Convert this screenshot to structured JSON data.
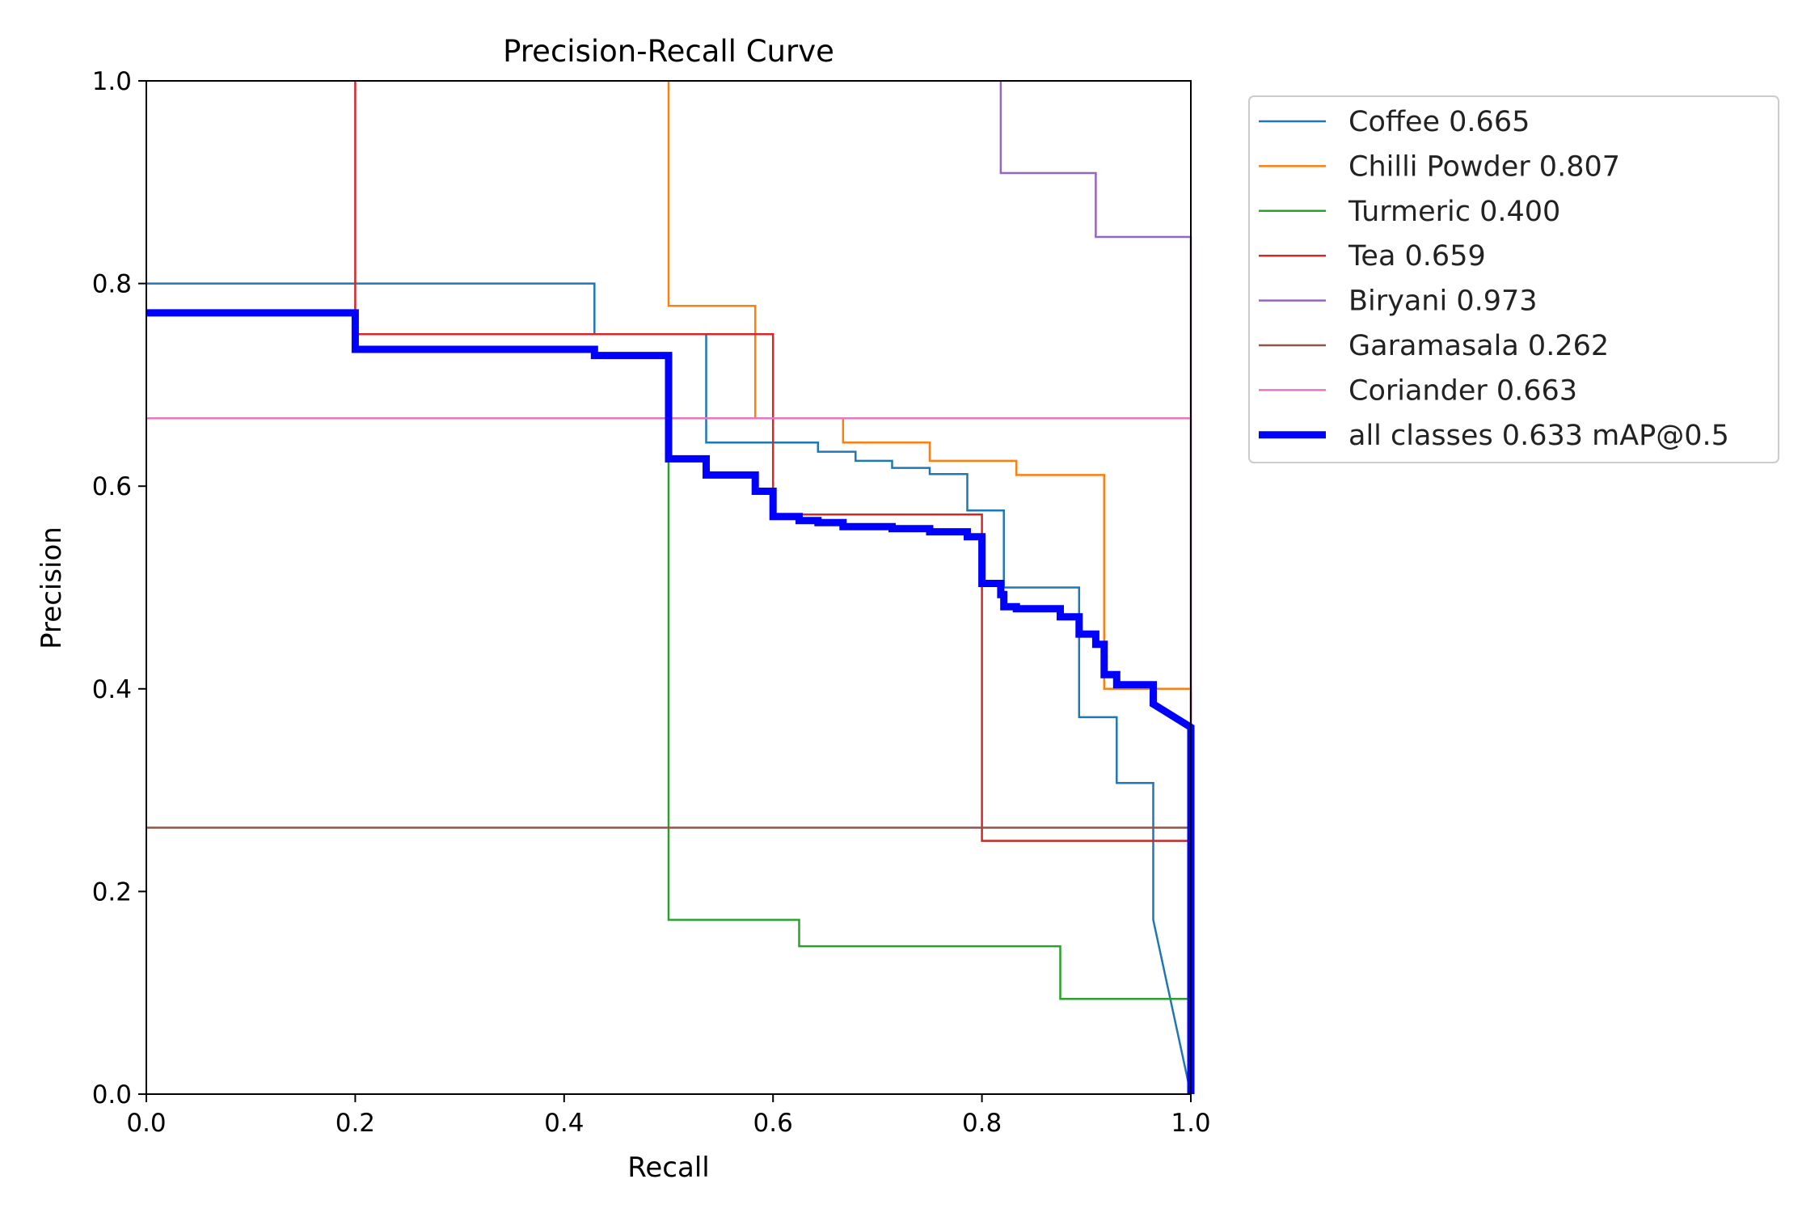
{
  "chart_data": {
    "type": "line",
    "title": "Precision-Recall Curve",
    "xlabel": "Recall",
    "ylabel": "Precision",
    "xlim": [
      0,
      1
    ],
    "ylim": [
      0,
      1
    ],
    "xticks": [
      "0.0",
      "0.2",
      "0.4",
      "0.6",
      "0.8",
      "1.0"
    ],
    "yticks": [
      "0.0",
      "0.2",
      "0.4",
      "0.6",
      "0.8",
      "1.0"
    ],
    "grid": false,
    "legend_position": "outside-top-right",
    "series": [
      {
        "name": "Coffee 0.665",
        "color": "#1f77b4",
        "x": [
          0,
          0.429,
          0.429,
          0.536,
          0.536,
          0.643,
          0.643,
          0.679,
          0.679,
          0.714,
          0.714,
          0.75,
          0.75,
          0.786,
          0.786,
          0.821,
          0.821,
          0.893,
          0.893,
          0.929,
          0.929,
          0.964,
          0.964,
          1.0
        ],
        "y": [
          0.8,
          0.8,
          0.75,
          0.75,
          0.643,
          0.643,
          0.634,
          0.634,
          0.625,
          0.625,
          0.618,
          0.618,
          0.612,
          0.612,
          0.576,
          0.576,
          0.5,
          0.5,
          0.372,
          0.372,
          0.307,
          0.307,
          0.172,
          0.0
        ]
      },
      {
        "name": "Chilli Powder 0.807",
        "color": "#ff7f0e",
        "x": [
          0.5,
          0.5,
          0.583,
          0.583,
          0.667,
          0.667,
          0.75,
          0.75,
          0.833,
          0.833,
          0.917,
          0.917,
          1.0,
          1.0
        ],
        "y": [
          1.0,
          0.778,
          0.778,
          0.667,
          0.667,
          0.643,
          0.643,
          0.625,
          0.625,
          0.611,
          0.611,
          0.4,
          0.4,
          0.0
        ]
      },
      {
        "name": "Turmeric 0.400",
        "color": "#2ca02c",
        "x": [
          0.5,
          0.5,
          0.625,
          0.625,
          0.875,
          0.875,
          1.0,
          1.0
        ],
        "y": [
          0.625,
          0.172,
          0.172,
          0.146,
          0.146,
          0.094,
          0.094,
          0.0
        ]
      },
      {
        "name": "Tea 0.659",
        "color": "#d62728",
        "x": [
          0.2,
          0.2,
          0.6,
          0.6,
          0.8,
          0.8,
          1.0,
          1.0
        ],
        "y": [
          1.0,
          0.75,
          0.75,
          0.572,
          0.572,
          0.25,
          0.25,
          0.0
        ]
      },
      {
        "name": "Biryani 0.973",
        "color": "#9467bd",
        "x": [
          0.818,
          0.818,
          0.909,
          0.909,
          1.0,
          1.0
        ],
        "y": [
          1.0,
          0.909,
          0.909,
          0.846,
          0.846,
          0.0
        ]
      },
      {
        "name": "Garamasala 0.262",
        "color": "#8c564b",
        "x": [
          0,
          1.0,
          1.0
        ],
        "y": [
          0.263,
          0.263,
          0.0
        ]
      },
      {
        "name": "Coriander 0.663",
        "color": "#e377c2",
        "x": [
          0,
          1.0,
          1.0
        ],
        "y": [
          0.667,
          0.667,
          0.0
        ]
      },
      {
        "name": "all classes 0.633 mAP@0.5",
        "color": "#0000ff",
        "thick": true,
        "x": [
          0,
          0.2,
          0.2,
          0.429,
          0.429,
          0.5,
          0.5,
          0.536,
          0.536,
          0.583,
          0.583,
          0.6,
          0.6,
          0.625,
          0.625,
          0.643,
          0.643,
          0.667,
          0.667,
          0.714,
          0.714,
          0.75,
          0.75,
          0.786,
          0.786,
          0.8,
          0.8,
          0.818,
          0.818,
          0.821,
          0.821,
          0.833,
          0.833,
          0.875,
          0.875,
          0.893,
          0.893,
          0.909,
          0.909,
          0.917,
          0.917,
          0.929,
          0.929,
          0.964,
          0.964,
          1.0,
          1.0
        ],
        "y": [
          0.771,
          0.771,
          0.735,
          0.735,
          0.729,
          0.729,
          0.627,
          0.627,
          0.611,
          0.611,
          0.595,
          0.595,
          0.57,
          0.57,
          0.566,
          0.566,
          0.564,
          0.564,
          0.56,
          0.56,
          0.558,
          0.558,
          0.555,
          0.555,
          0.55,
          0.55,
          0.504,
          0.504,
          0.493,
          0.493,
          0.481,
          0.481,
          0.479,
          0.479,
          0.471,
          0.471,
          0.454,
          0.454,
          0.444,
          0.444,
          0.414,
          0.414,
          0.404,
          0.404,
          0.385,
          0.362,
          0.0
        ]
      }
    ]
  }
}
